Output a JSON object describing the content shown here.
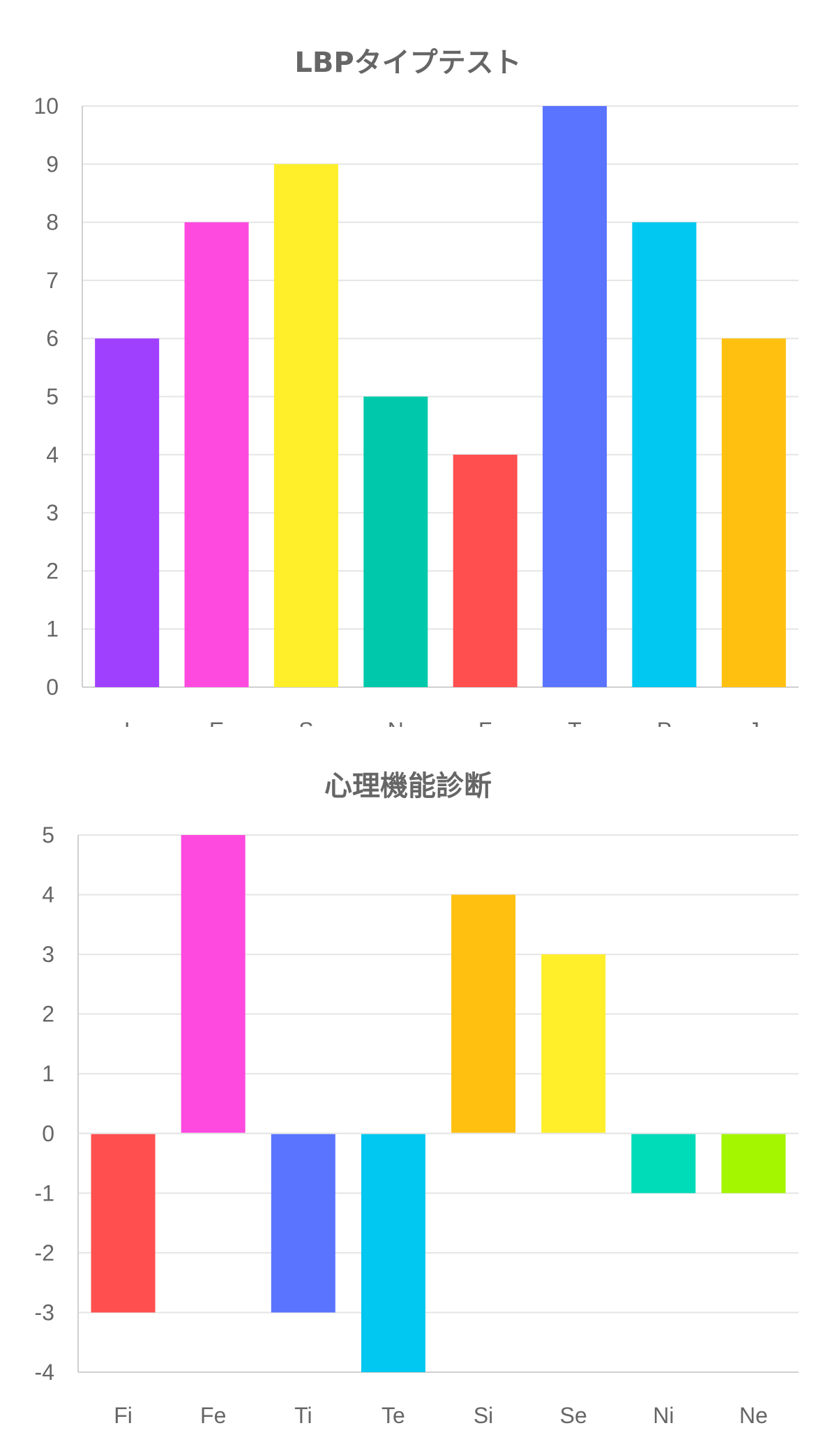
{
  "chart_data": [
    {
      "type": "bar",
      "title": "LBPタイプテスト",
      "xlabel": "",
      "ylabel": "",
      "categories": [
        "I",
        "E",
        "S",
        "N",
        "F",
        "T",
        "P",
        "J"
      ],
      "values": [
        6,
        8,
        9,
        5,
        4,
        10,
        8,
        6
      ],
      "colors": [
        "#a040ff",
        "#ff4ae0",
        "#ffef2a",
        "#00c9ab",
        "#ff4f4f",
        "#5a74ff",
        "#00c8f0",
        "#ffc010"
      ],
      "ylim": [
        0,
        10
      ],
      "yticks": [
        "0",
        "1",
        "2",
        "3",
        "4",
        "5",
        "6",
        "7",
        "8",
        "9",
        "10"
      ],
      "grid": true,
      "legend": "none"
    },
    {
      "type": "bar",
      "title": "心理機能診断",
      "xlabel": "",
      "ylabel": "",
      "categories": [
        "Fi",
        "Fe",
        "Ti",
        "Te",
        "Si",
        "Se",
        "Ni",
        "Ne"
      ],
      "values": [
        -3,
        5,
        -3,
        -4,
        4,
        3,
        -1,
        -1
      ],
      "colors": [
        "#ff4f4f",
        "#ff4ae0",
        "#5a74ff",
        "#00c8f0",
        "#ffc010",
        "#ffef2a",
        "#00dbb8",
        "#a4f500"
      ],
      "ylim": [
        -4,
        5
      ],
      "yticks": [
        "-4",
        "-3",
        "-2",
        "-1",
        "0",
        "1",
        "2",
        "3",
        "4",
        "5"
      ],
      "grid": true,
      "legend": "none"
    }
  ]
}
